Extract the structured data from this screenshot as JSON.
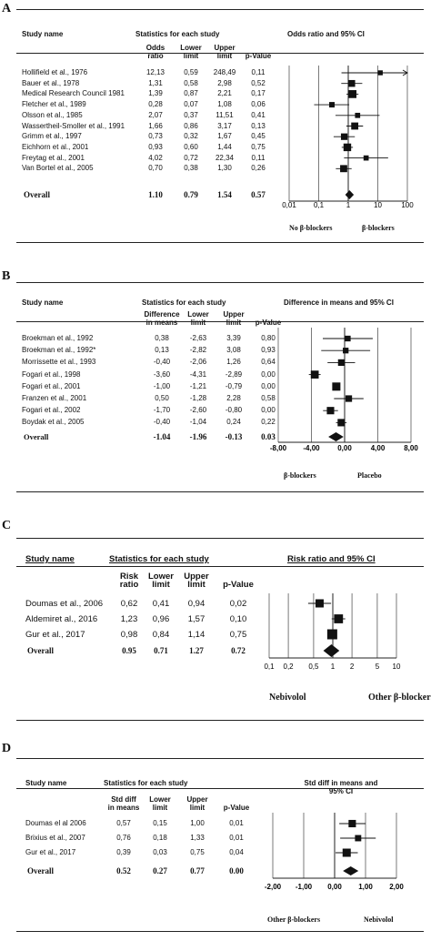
{
  "chart_data": [
    {
      "panel": "A",
      "type": "forest",
      "header": {
        "study": "Study name",
        "stats": "Statistics for each study",
        "plot_title": "Odds ratio and 95% CI",
        "cols": [
          [
            "Odds",
            "ratio"
          ],
          [
            "Lower",
            "limit"
          ],
          [
            "Upper",
            "limit"
          ],
          [
            "p-Value"
          ]
        ]
      },
      "scale": "log",
      "ticks": [
        "0,01",
        "0,1",
        "1",
        "10",
        "100"
      ],
      "tick_values": [
        0.01,
        0.1,
        1,
        10,
        100
      ],
      "xlim": [
        0.01,
        100
      ],
      "ref": 1,
      "left_label": "No β-blockers",
      "right_label": "β-blockers",
      "studies": [
        {
          "name": "Hollifield et al., 1976",
          "est": 12.13,
          "lo": 0.59,
          "hi": 248.49,
          "p": 0.11,
          "w": 0.4
        },
        {
          "name": "Bauer et al., 1978",
          "est": 1.31,
          "lo": 0.58,
          "hi": 2.98,
          "p": 0.52,
          "w": 0.75
        },
        {
          "name": "Medical Research Council 1981",
          "est": 1.39,
          "lo": 0.87,
          "hi": 2.21,
          "p": 0.17,
          "w": 0.95
        },
        {
          "name": "Fletcher et al., 1989",
          "est": 0.28,
          "lo": 0.07,
          "hi": 1.08,
          "p": 0.06,
          "w": 0.5
        },
        {
          "name": "Olsson et al., 1985",
          "est": 2.07,
          "lo": 0.37,
          "hi": 11.51,
          "p": 0.41,
          "w": 0.45
        },
        {
          "name": "Wassertheil-Smoller et al., 1991",
          "est": 1.66,
          "lo": 0.86,
          "hi": 3.17,
          "p": 0.13,
          "w": 0.8
        },
        {
          "name": "Grimm et al., 1997",
          "est": 0.73,
          "lo": 0.32,
          "hi": 1.67,
          "p": 0.45,
          "w": 0.7
        },
        {
          "name": "Eichhorn et al., 2001",
          "est": 0.93,
          "lo": 0.6,
          "hi": 1.44,
          "p": 0.75,
          "w": 0.9
        },
        {
          "name": "Freytag et al., 2001",
          "est": 4.02,
          "lo": 0.72,
          "hi": 22.34,
          "p": 0.11,
          "w": 0.45
        },
        {
          "name": "Van Bortel et al., 2005",
          "est": 0.7,
          "lo": 0.38,
          "hi": 1.3,
          "p": 0.26,
          "w": 0.8
        }
      ],
      "studies_text": [
        [
          "Hollifield et al., 1976",
          "12,13",
          "0,59",
          "248,49",
          "0,11"
        ],
        [
          "Bauer et al., 1978",
          "1,31",
          "0,58",
          "2,98",
          "0,52"
        ],
        [
          "Medical Research Council 1981",
          "1,39",
          "0,87",
          "2,21",
          "0,17"
        ],
        [
          "Fletcher et al., 1989",
          "0,28",
          "0,07",
          "1,08",
          "0,06"
        ],
        [
          "Olsson et al., 1985",
          "2,07",
          "0,37",
          "11,51",
          "0,41"
        ],
        [
          "Wassertheil-Smoller et al., 1991",
          "1,66",
          "0,86",
          "3,17",
          "0,13"
        ],
        [
          "Grimm et al., 1997",
          "0,73",
          "0,32",
          "1,67",
          "0,45"
        ],
        [
          "Eichhorn et al., 2001",
          "0,93",
          "0,60",
          "1,44",
          "0,75"
        ],
        [
          "Freytag et al., 2001",
          "4,02",
          "0,72",
          "22,34",
          "0,11"
        ],
        [
          "Van Bortel et al., 2005",
          "0,70",
          "0,38",
          "1,30",
          "0,26"
        ]
      ],
      "overall": {
        "name": "Overall",
        "est": 1.1,
        "lo": 0.79,
        "hi": 1.54,
        "p": 0.57
      },
      "overall_text": [
        "Overall",
        "1.10",
        "0.79",
        "1.54",
        "0.57"
      ]
    },
    {
      "panel": "B",
      "type": "forest",
      "header": {
        "study": "Study name",
        "stats": "Statistics for each study",
        "plot_title": "Difference in means and 95% CI",
        "cols": [
          [
            "Difference",
            "in means"
          ],
          [
            "Lower",
            "limit"
          ],
          [
            "Upper",
            "limit"
          ],
          [
            "p-Value"
          ]
        ]
      },
      "scale": "linear",
      "ticks": [
        "-8,00",
        "-4,00",
        "0,00",
        "4,00",
        "8,00"
      ],
      "tick_values": [
        -8,
        -4,
        0,
        4,
        8
      ],
      "xlim": [
        -8,
        8
      ],
      "ref": 0,
      "left_label": "β-blockers",
      "right_label": "Placebo",
      "studies": [
        {
          "name": "Broekman et al., 1992",
          "est": 0.38,
          "lo": -2.63,
          "hi": 3.39,
          "p": 0.8,
          "w": 0.55
        },
        {
          "name": "Broekman et al., 1992*",
          "est": 0.13,
          "lo": -2.82,
          "hi": 3.08,
          "p": 0.93,
          "w": 0.55
        },
        {
          "name": "Morrissette et al., 1993",
          "est": -0.4,
          "lo": -2.06,
          "hi": 1.26,
          "p": 0.64,
          "w": 0.7
        },
        {
          "name": "Fogari et al., 1998",
          "est": -3.6,
          "lo": -4.31,
          "hi": -2.89,
          "p": 0.0,
          "w": 0.95
        },
        {
          "name": "Fogari et al., 2001",
          "est": -1.0,
          "lo": -1.21,
          "hi": -0.79,
          "p": 0.0,
          "w": 1.0
        },
        {
          "name": "Franzen et al., 2001",
          "est": 0.5,
          "lo": -1.28,
          "hi": 2.28,
          "p": 0.58,
          "w": 0.7
        },
        {
          "name": "Fogari et al., 2002",
          "est": -1.7,
          "lo": -2.6,
          "hi": -0.8,
          "p": 0.0,
          "w": 0.85
        },
        {
          "name": "Boydak et al., 2005",
          "est": -0.4,
          "lo": -1.04,
          "hi": 0.24,
          "p": 0.22,
          "w": 0.85
        }
      ],
      "studies_text": [
        [
          "Broekman et al., 1992",
          "0,38",
          "-2,63",
          "3,39",
          "0,80"
        ],
        [
          "Broekman et al., 1992*",
          "0,13",
          "-2,82",
          "3,08",
          "0,93"
        ],
        [
          "Morrissette et al., 1993",
          "-0,40",
          "-2,06",
          "1,26",
          "0,64"
        ],
        [
          "Fogari et al., 1998",
          "-3,60",
          "-4,31",
          "-2,89",
          "0,00"
        ],
        [
          "Fogari et al., 2001",
          "-1,00",
          "-1,21",
          "-0,79",
          "0,00"
        ],
        [
          "Franzen et al., 2001",
          "0,50",
          "-1,28",
          "2,28",
          "0,58"
        ],
        [
          "Fogari et al., 2002",
          "-1,70",
          "-2,60",
          "-0,80",
          "0,00"
        ],
        [
          "Boydak et al., 2005",
          "-0,40",
          "-1,04",
          "0,24",
          "0,22"
        ]
      ],
      "overall": {
        "name": "Overall",
        "est": -1.04,
        "lo": -1.96,
        "hi": -0.13,
        "p": 0.03
      },
      "overall_text": [
        "Overall",
        "-1.04",
        "-1.96",
        "-0.13",
        "0.03"
      ]
    },
    {
      "panel": "C",
      "type": "forest",
      "header": {
        "study": "Study name",
        "stats": "Statistics for each study",
        "plot_title": "Risk ratio and 95% CI",
        "cols": [
          [
            "Risk",
            "ratio"
          ],
          [
            "Lower",
            "limit"
          ],
          [
            "Upper",
            "limit"
          ],
          [
            "p-Value"
          ]
        ]
      },
      "scale": "log",
      "ticks": [
        "0,1",
        "0,2",
        "0,5",
        "1",
        "2",
        "5",
        "10"
      ],
      "tick_values": [
        0.1,
        0.2,
        0.5,
        1,
        2,
        5,
        10
      ],
      "xlim": [
        0.1,
        10
      ],
      "ref": 1,
      "left_label": "Nebivolol",
      "right_label": "Other β-blockers",
      "studies": [
        {
          "name": "Doumas et al., 2006",
          "est": 0.62,
          "lo": 0.41,
          "hi": 0.94,
          "p": 0.02,
          "w": 0.75
        },
        {
          "name": "Aldemiret al., 2016",
          "est": 1.23,
          "lo": 0.96,
          "hi": 1.57,
          "p": 0.1,
          "w": 0.85
        },
        {
          "name": "Gur et al., 2017",
          "est": 0.98,
          "lo": 0.84,
          "hi": 1.14,
          "p": 0.75,
          "w": 1.0
        }
      ],
      "studies_text": [
        [
          "Doumas et al., 2006",
          "0,62",
          "0,41",
          "0,94",
          "0,02"
        ],
        [
          "Aldemiret al., 2016",
          "1,23",
          "0,96",
          "1,57",
          "0,10"
        ],
        [
          "Gur et al., 2017",
          "0,98",
          "0,84",
          "1,14",
          "0,75"
        ]
      ],
      "overall": {
        "name": "Overall",
        "est": 0.95,
        "lo": 0.71,
        "hi": 1.27,
        "p": 0.72
      },
      "overall_text": [
        "Overall",
        "0.95",
        "0.71",
        "1.27",
        "0.72"
      ]
    },
    {
      "panel": "D",
      "type": "forest",
      "header": {
        "study": "Study name",
        "stats": "Statistics for each study",
        "plot_title": "Std diff in means and 95% CI",
        "cols": [
          [
            "Std diff",
            "in means"
          ],
          [
            "Lower",
            "limit"
          ],
          [
            "Upper",
            "limit"
          ],
          [
            "p-Value"
          ]
        ]
      },
      "scale": "linear",
      "ticks": [
        "-2,00",
        "-1,00",
        "0,00",
        "1,00",
        "2,00"
      ],
      "tick_values": [
        -2,
        -1,
        0,
        1,
        2
      ],
      "xlim": [
        -2,
        2
      ],
      "ref": 0,
      "left_label": "Other β-blockers",
      "right_label": "Nebivolol",
      "studies": [
        {
          "name": "Doumas el al 2006",
          "est": 0.57,
          "lo": 0.15,
          "hi": 1.0,
          "p": 0.01,
          "w": 0.85
        },
        {
          "name": "Brixius et al., 2007",
          "est": 0.76,
          "lo": 0.18,
          "hi": 1.33,
          "p": 0.01,
          "w": 0.65
        },
        {
          "name": "Gur et al., 2017",
          "est": 0.39,
          "lo": 0.03,
          "hi": 0.75,
          "p": 0.04,
          "w": 1.0
        }
      ],
      "studies_text": [
        [
          "Doumas el al 2006",
          "0,57",
          "0,15",
          "1,00",
          "0,01"
        ],
        [
          "Brixius et al., 2007",
          "0,76",
          "0,18",
          "1,33",
          "0,01"
        ],
        [
          "Gur et al., 2017",
          "0,39",
          "0,03",
          "0,75",
          "0,04"
        ]
      ],
      "overall": {
        "name": "Overall",
        "est": 0.52,
        "lo": 0.27,
        "hi": 0.77,
        "p": 0.0
      },
      "overall_text": [
        "Overall",
        "0.52",
        "0.27",
        "0.77",
        "0.00"
      ]
    }
  ]
}
